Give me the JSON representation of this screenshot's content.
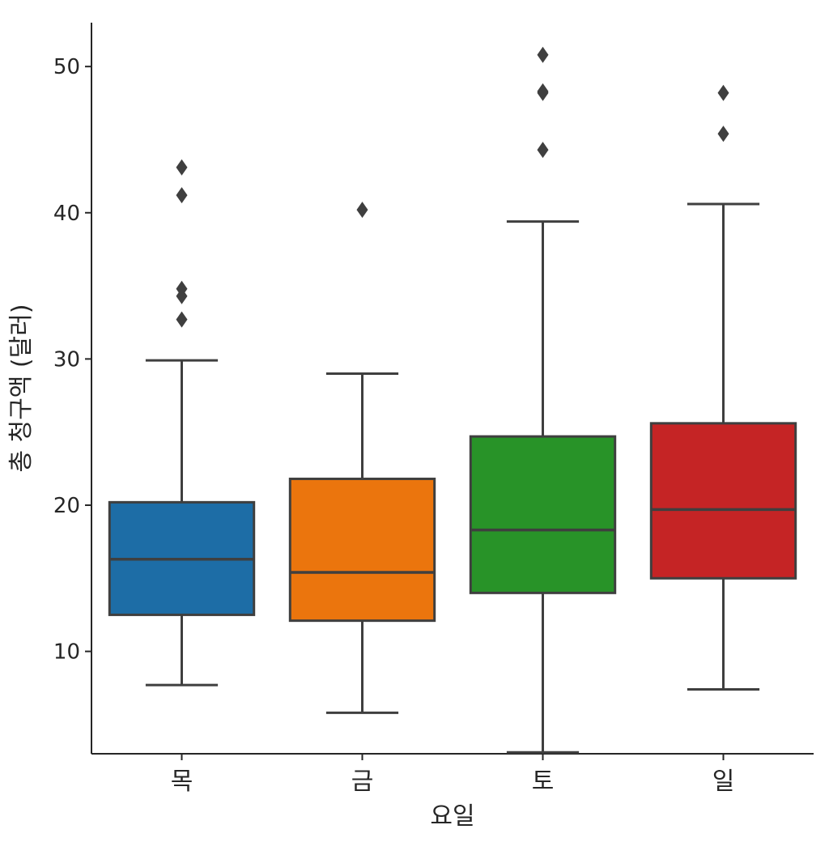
{
  "chart_data": {
    "type": "box",
    "xlabel": "요일",
    "ylabel": "총 청구액 (달러)",
    "categories": [
      "목",
      "금",
      "토",
      "일"
    ],
    "yticks": [
      10,
      20,
      30,
      40,
      50
    ],
    "ylim": [
      3.0,
      53.0
    ],
    "grid": false,
    "boxes": [
      {
        "category": "목",
        "color": "#1f77b4",
        "whisker_low": 7.7,
        "q1": 12.5,
        "median": 16.3,
        "q3": 20.2,
        "whisker_high": 29.9,
        "outliers": [
          32.7,
          34.3,
          34.8,
          41.2,
          43.1
        ]
      },
      {
        "category": "금",
        "color": "#ff7f0e",
        "whisker_low": 5.8,
        "q1": 12.1,
        "median": 15.4,
        "q3": 21.8,
        "whisker_high": 29.0,
        "outliers": [
          40.2
        ]
      },
      {
        "category": "토",
        "color": "#2ca02c",
        "whisker_low": 3.1,
        "q1": 14.0,
        "median": 18.3,
        "q3": 24.7,
        "whisker_high": 39.4,
        "outliers": [
          44.3,
          48.2,
          48.3,
          50.8
        ]
      },
      {
        "category": "일",
        "color": "#d62728",
        "whisker_low": 7.4,
        "q1": 15.0,
        "median": 19.7,
        "q3": 25.6,
        "whisker_high": 40.6,
        "outliers": [
          45.4,
          48.2
        ]
      }
    ]
  }
}
